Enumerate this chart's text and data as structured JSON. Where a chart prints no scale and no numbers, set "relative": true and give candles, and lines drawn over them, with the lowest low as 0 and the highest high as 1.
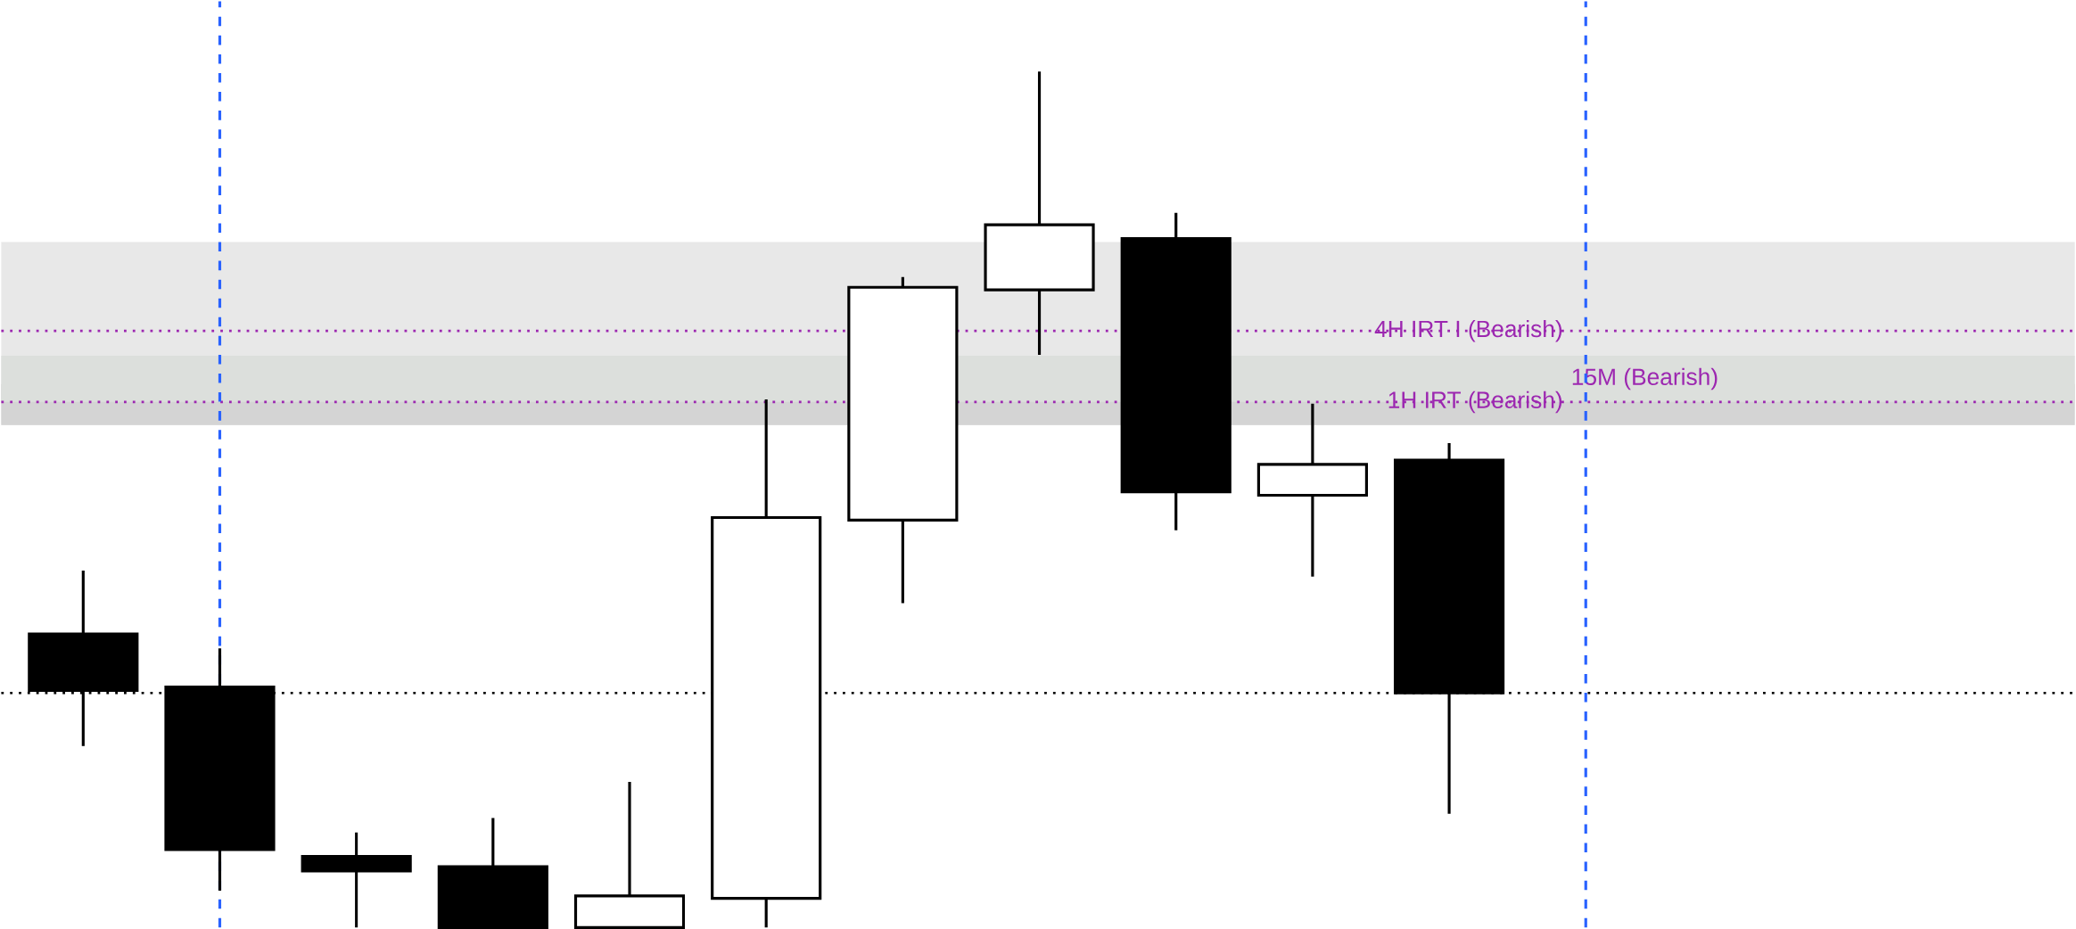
{
  "chart_data": {
    "type": "candlestick",
    "relative": true,
    "categories": [
      null,
      null,
      null,
      null,
      null,
      null,
      null,
      null,
      null,
      null,
      null,
      null,
      null,
      null,
      null
    ],
    "ohlc": [
      [
        0.343,
        0.417,
        0.212,
        0.277
      ],
      [
        0.281,
        0.326,
        0.043,
        0.091
      ],
      [
        0.083,
        0.111,
        0,
        0.066
      ],
      [
        0.071,
        0.128,
        0,
        0
      ],
      [
        0,
        0.17,
        0,
        0.037
      ],
      [
        0.034,
        0.617,
        0,
        0.479
      ],
      [
        0.476,
        0.76,
        0.379,
        0.748
      ],
      [
        0.745,
        1,
        0.669,
        0.821
      ],
      [
        0.805,
        0.835,
        0.464,
        0.509
      ],
      [
        0.505,
        0.612,
        0.41,
        0.541
      ],
      [
        0.546,
        0.566,
        0.133,
        0.274
      ],
      null,
      null,
      null,
      null
    ],
    "colors": [
      "#000000",
      "#000000",
      "#000000",
      "#000000",
      "#ffffff",
      "#ffffff",
      "#ffffff",
      "#ffffff",
      "#000000",
      "#ffffff",
      "#000000",
      null,
      null,
      null,
      null
    ],
    "bands": [
      {
        "axis": "y",
        "from": 0.587,
        "to": 0.801,
        "color": "#e8e8e8"
      },
      {
        "axis": "y",
        "from": 0.587,
        "to": 0.635,
        "color": "#d4d4d4"
      },
      {
        "axis": "y",
        "from": 0.614,
        "to": 0.668,
        "color": "#dcdfdc",
        "label": "15M (Bearish)"
      }
    ],
    "ref_lines": [
      {
        "axis": "y",
        "value": 0.697,
        "label": "4H IRT I (Bearish)",
        "color": "#9c27b0",
        "line_style": "dotted"
      },
      {
        "axis": "y",
        "value": 0.614,
        "label": "1H IRT (Bearish)",
        "color": "#9c27b0",
        "line_style": "dotted"
      },
      {
        "axis": "y",
        "value": 0.274,
        "color": "#000000",
        "line_style": "dotted"
      }
    ]
  }
}
